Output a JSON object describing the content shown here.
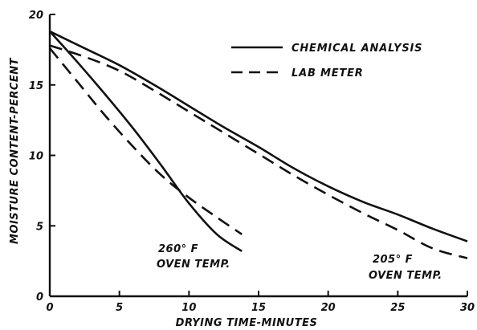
{
  "chart_data": {
    "type": "line",
    "title": "",
    "xlabel": "DRYING TIME-MINUTES",
    "ylabel": "MOISTURE CONTENT-PERCENT",
    "xlim": [
      0,
      30
    ],
    "ylim": [
      0,
      20
    ],
    "x_ticks": [
      "0",
      "5",
      "10",
      "15",
      "20",
      "25",
      "30"
    ],
    "y_ticks": [
      "0",
      "5",
      "10",
      "15",
      "20"
    ],
    "grid": false,
    "legend_position": "top-right",
    "legend": [
      {
        "label": "CHEMICAL ANALYSIS",
        "style": "solid"
      },
      {
        "label": "LAB METER",
        "style": "dashed"
      }
    ],
    "annotations": [
      {
        "lines": [
          "260° F",
          "OVEN TEMP."
        ]
      },
      {
        "lines": [
          "205° F",
          "OVEN TEMP."
        ]
      }
    ],
    "series": [
      {
        "style": "solid",
        "group": "260° F",
        "x": [
          0,
          2,
          4,
          6,
          8,
          10,
          12,
          13.8
        ],
        "y": [
          18.8,
          16.6,
          14.3,
          11.9,
          9.3,
          6.6,
          4.4,
          3.2
        ]
      },
      {
        "style": "dashed",
        "group": "260° F",
        "x": [
          0,
          2,
          4,
          6,
          8,
          10,
          12,
          13.8
        ],
        "y": [
          17.6,
          15.2,
          12.8,
          10.6,
          8.6,
          7.0,
          5.6,
          4.4
        ]
      },
      {
        "style": "solid",
        "group": "205° F",
        "x": [
          0,
          2.5,
          5,
          7.5,
          10,
          12.5,
          15,
          17.5,
          20,
          22.5,
          25,
          27.5,
          30
        ],
        "y": [
          18.8,
          17.6,
          16.4,
          15.0,
          13.5,
          12.0,
          10.6,
          9.1,
          7.8,
          6.7,
          5.8,
          4.8,
          3.9
        ]
      },
      {
        "style": "dashed",
        "group": "205° F",
        "x": [
          0,
          2.5,
          5,
          7.5,
          10,
          12.5,
          15,
          17.5,
          20,
          22.5,
          25,
          27.5,
          30
        ],
        "y": [
          17.8,
          17.0,
          16.0,
          14.6,
          13.1,
          11.6,
          10.1,
          8.6,
          7.2,
          5.9,
          4.7,
          3.4,
          2.7
        ]
      }
    ]
  }
}
